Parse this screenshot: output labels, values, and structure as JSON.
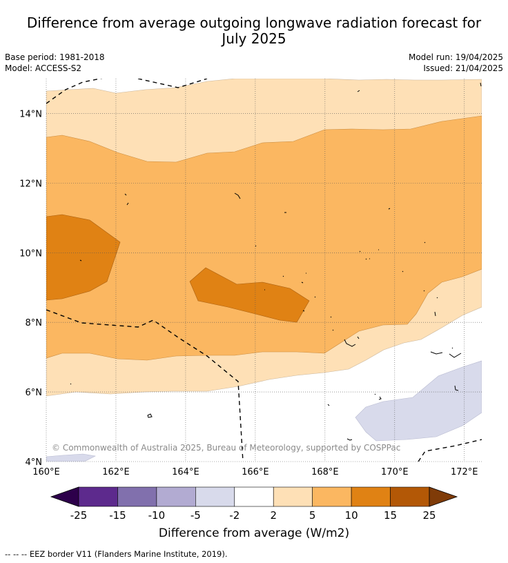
{
  "title_line1": "Difference from average outgoing longwave radiation forecast for",
  "title_line2": "July 2025",
  "base_period": "Base period: 1981-2018",
  "model": "Model: ACCESS-S2",
  "model_run": "Model run: 19/04/2025",
  "issued": "Issued: 21/04/2025",
  "copyright": "© Commonwealth of Australia 2025, Bureau of Meteorology, supported by COSPPac",
  "footnote": "--  --  -- EEZ border V11 (Flanders Marine Institute, 2019).",
  "chart_data": {
    "type": "contour-map",
    "x_range": [
      160,
      172.5
    ],
    "y_range": [
      4,
      15
    ],
    "x_ticks": [
      "160°E",
      "162°E",
      "164°E",
      "166°E",
      "168°E",
      "170°E",
      "172°E"
    ],
    "y_ticks": [
      "4°N",
      "6°N",
      "8°N",
      "10°N",
      "12°N",
      "14°N"
    ],
    "colorbar": {
      "label": "Difference from average (W/m2)",
      "levels": [
        "-25",
        "-15",
        "-10",
        "-5",
        "-2",
        "2",
        "5",
        "10",
        "15",
        "25"
      ],
      "colors": [
        "#2d004b",
        "#5d2a8d",
        "#8170ad",
        "#b2abd2",
        "#d8daeb",
        "#ffffff",
        "#fee0b6",
        "#fbb761",
        "#e08214",
        "#b35806",
        "#7f3b08"
      ]
    },
    "regions": [
      {
        "level": "2 to 5",
        "color": "#fee0b6",
        "lon_extent": [
          160,
          172.5
        ],
        "lat_extent": [
          5.9,
          14.7
        ]
      },
      {
        "level": "5 to 10",
        "color": "#fbb761",
        "lon_extent": [
          160,
          172.5
        ],
        "lat_extent": [
          7.0,
          13.9
        ]
      },
      {
        "level": "10 to 15",
        "color": "#e08214",
        "lon_extent": [
          160,
          162.1
        ],
        "lat_extent": [
          8.7,
          11.1
        ]
      },
      {
        "level": "10 to 15",
        "color": "#e08214",
        "lon_extent": [
          164.1,
          167.5
        ],
        "lat_extent": [
          8.0,
          9.6
        ]
      },
      {
        "level": "-5 to -2",
        "color": "#d8daeb",
        "lon_extent": [
          168.9,
          172.5
        ],
        "lat_extent": [
          4.6,
          6.9
        ]
      },
      {
        "level": "-5 to -2",
        "color": "#d8daeb",
        "lon_extent": [
          160,
          161.4
        ],
        "lat_extent": [
          4.0,
          4.2
        ]
      }
    ]
  }
}
